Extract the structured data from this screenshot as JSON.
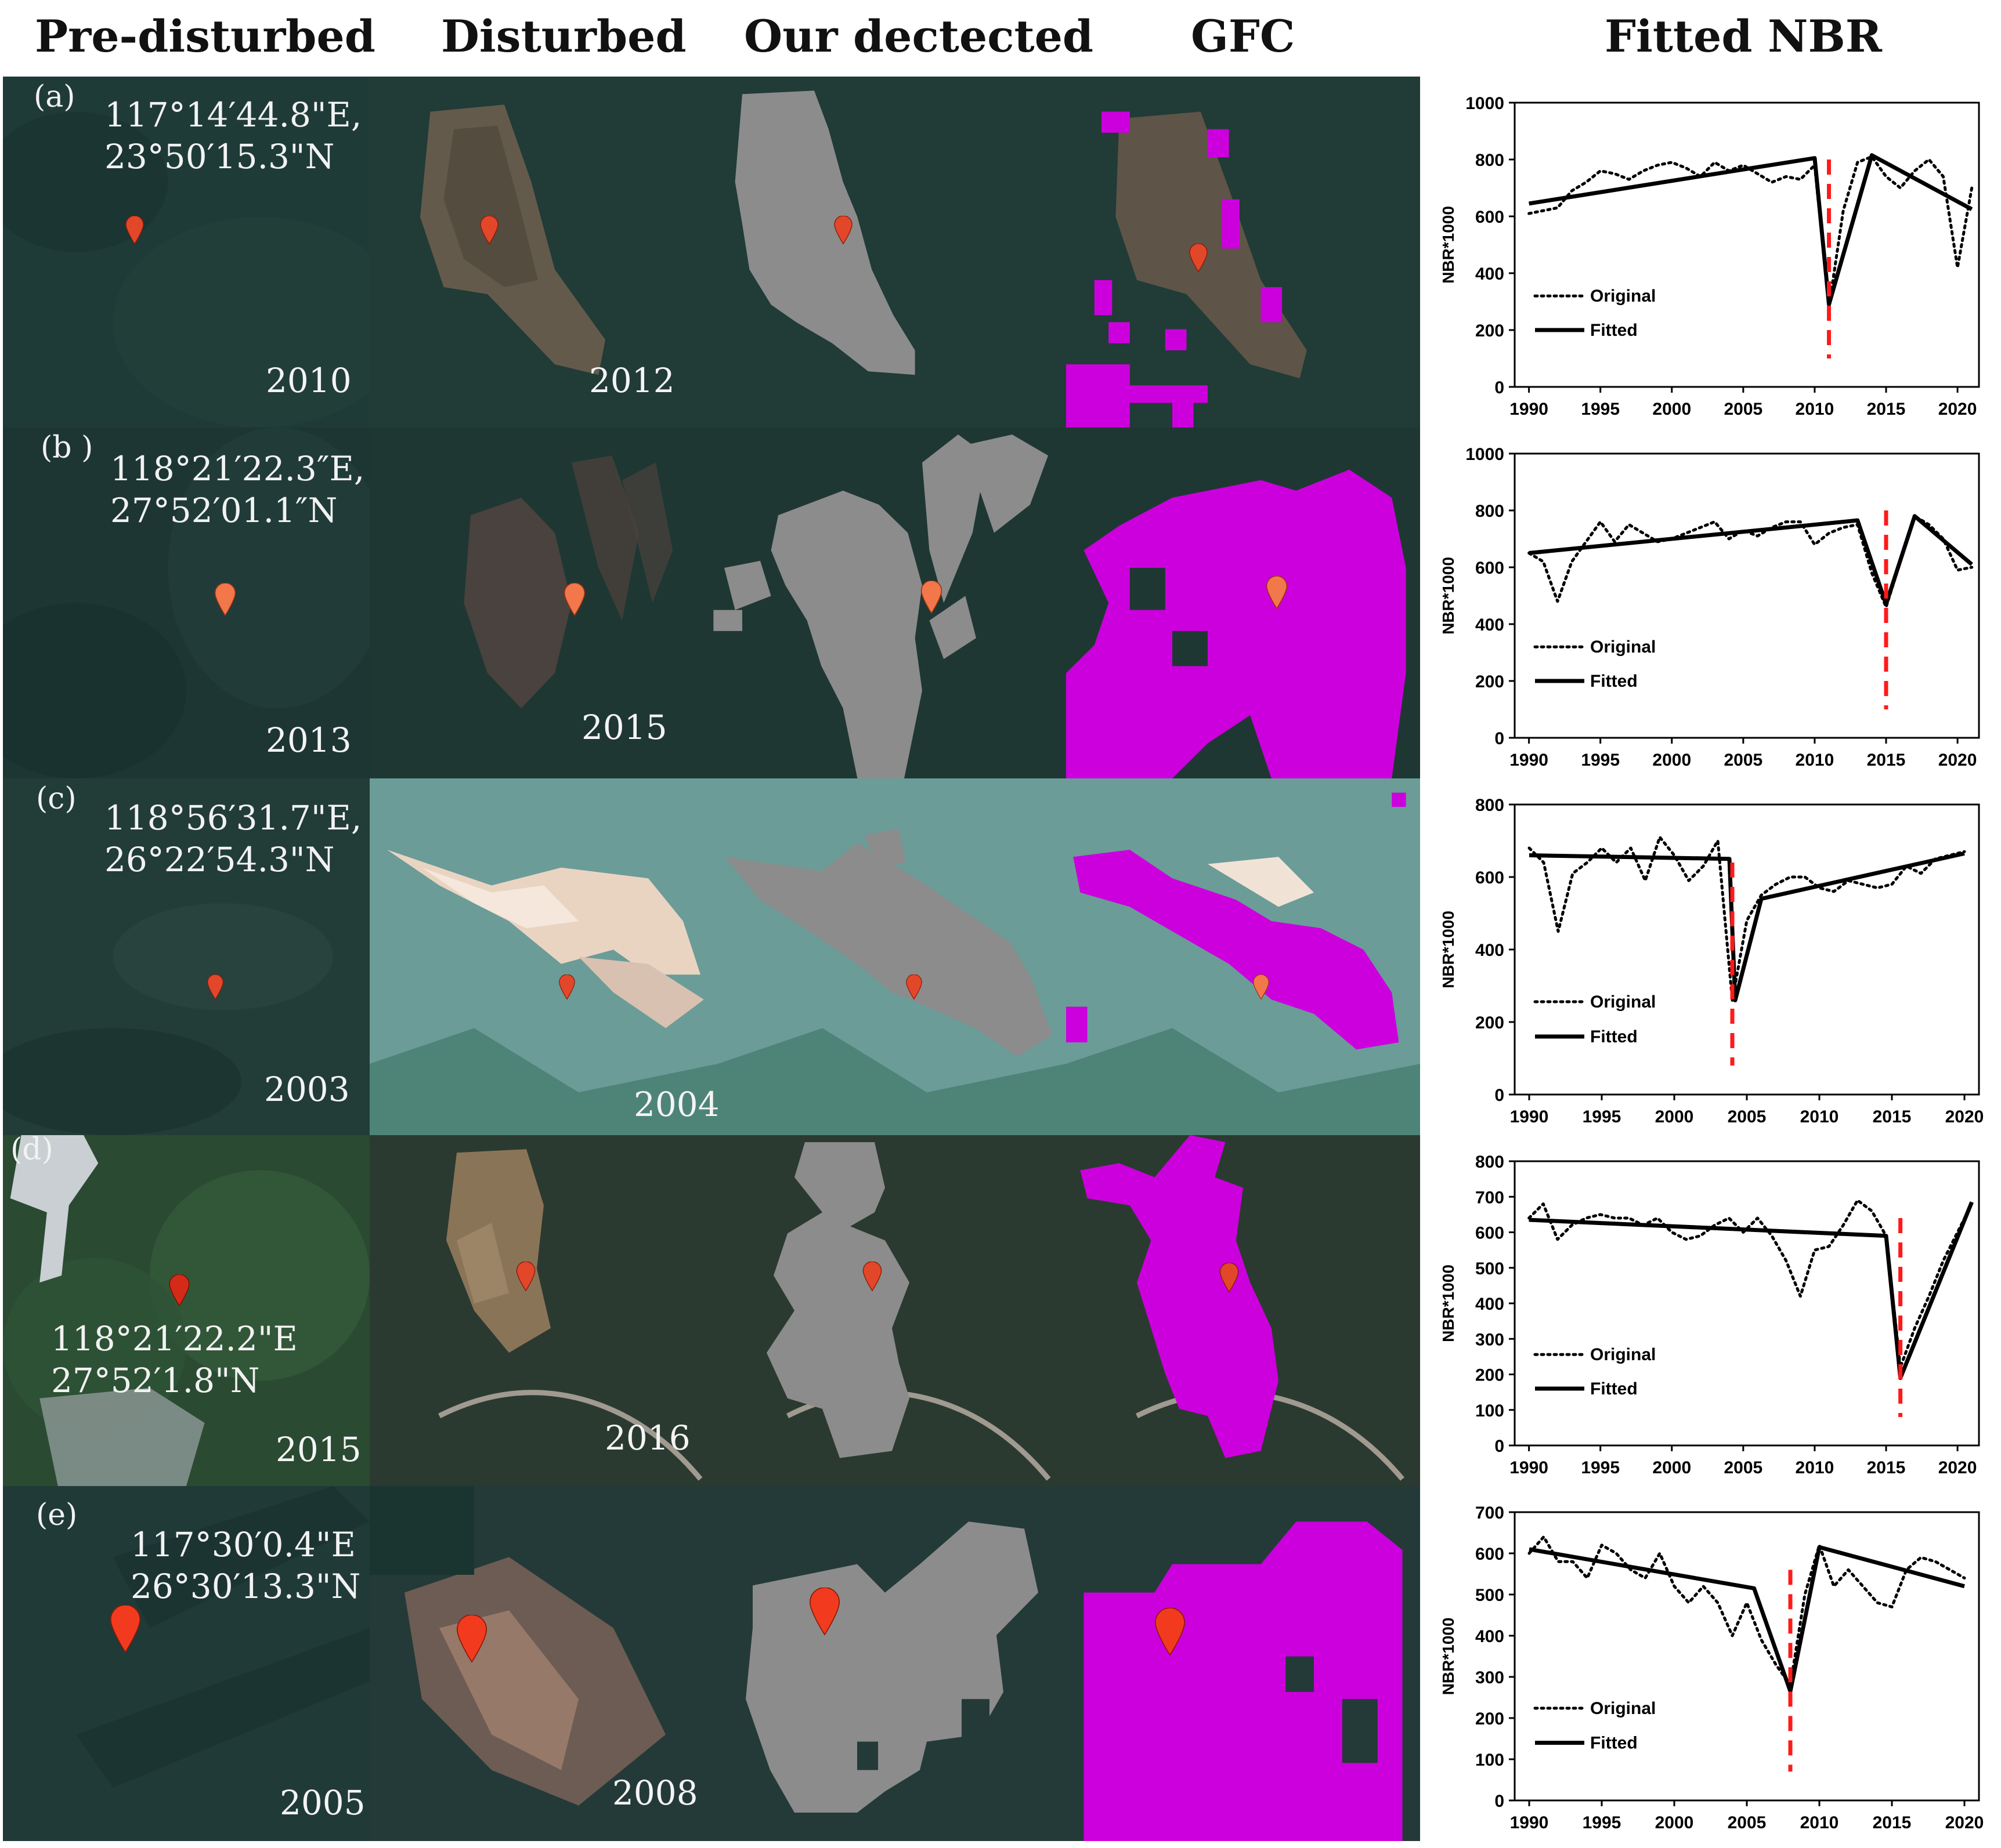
{
  "headers": {
    "pre": "Pre-disturbed",
    "dist": "Disturbed",
    "ours": "Our dectected",
    "gfc": "GFC",
    "nbr": "Fitted NBR"
  },
  "colors": {
    "forest": "#1f3b38",
    "detected": "#8c8c8c",
    "gfc": "#cc00dd",
    "marker": "#e2472a",
    "cutline": "#ff1a1a"
  },
  "rows": [
    {
      "label": "(a)",
      "coord1": "117°14′44.8\"E,",
      "coord2": "23°50′15.3\"N",
      "pre_year": "2010",
      "dist_year": "2012"
    },
    {
      "label": "(b )",
      "coord1": "118°21′22.3″E,",
      "coord2": "27°52′01.1″N",
      "pre_year": "2013",
      "dist_year": "2015"
    },
    {
      "label": "(c)",
      "coord1": "118°56′31.7\"E,",
      "coord2": "26°22′54.3\"N",
      "pre_year": "2003",
      "dist_year": "2004"
    },
    {
      "label": "(d)",
      "coord1": "118°21′22.2\"E",
      "coord2": "27°52′1.8\"N",
      "pre_year": "2015",
      "dist_year": "2016"
    },
    {
      "label": "(e)",
      "coord1": "117°30′0.4\"E",
      "coord2": "26°30′13.3\"N",
      "pre_year": "2005",
      "dist_year": "2008"
    }
  ],
  "chart_data": [
    {
      "type": "line",
      "panel": "a",
      "xlabel": "",
      "ylabel": "NBR*1000",
      "xlim": [
        1989,
        2021.5
      ],
      "ylim": [
        0,
        1000
      ],
      "xticks": [
        1990,
        1995,
        2000,
        2005,
        2010,
        2015,
        2020
      ],
      "yticks": [
        0,
        200,
        400,
        600,
        800,
        1000
      ],
      "legend": [
        "Original",
        "Fitted"
      ],
      "disturbance_year": 2011,
      "series": [
        {
          "name": "Original",
          "style": "dotted",
          "x": [
            1990,
            1991,
            1992,
            1993,
            1994,
            1995,
            1996,
            1997,
            1998,
            1999,
            2000,
            2001,
            2002,
            2003,
            2004,
            2005,
            2006,
            2007,
            2008,
            2009,
            2010,
            2011,
            2012,
            2013,
            2014,
            2015,
            2016,
            2017,
            2018,
            2019,
            2020,
            2021
          ],
          "y": [
            610,
            620,
            630,
            690,
            720,
            760,
            750,
            730,
            760,
            780,
            790,
            770,
            740,
            790,
            760,
            780,
            750,
            720,
            740,
            730,
            780,
            280,
            620,
            790,
            810,
            740,
            700,
            760,
            800,
            740,
            420,
            700
          ]
        },
        {
          "name": "Fitted",
          "style": "solid",
          "x": [
            1990,
            2010,
            2011,
            2014,
            2021
          ],
          "y": [
            645,
            805,
            290,
            815,
            625
          ]
        }
      ]
    },
    {
      "type": "line",
      "panel": "b",
      "xlabel": "",
      "ylabel": "NBR*1000",
      "xlim": [
        1989,
        2021.5
      ],
      "ylim": [
        0,
        1000
      ],
      "xticks": [
        1990,
        1995,
        2000,
        2005,
        2010,
        2015,
        2020
      ],
      "yticks": [
        0,
        200,
        400,
        600,
        800,
        1000
      ],
      "legend": [
        "Original",
        "Fitted"
      ],
      "disturbance_year": 2015,
      "series": [
        {
          "name": "Original",
          "style": "dotted",
          "x": [
            1990,
            1991,
            1992,
            1993,
            1994,
            1995,
            1996,
            1997,
            1998,
            1999,
            2000,
            2001,
            2002,
            2003,
            2004,
            2005,
            2006,
            2007,
            2008,
            2009,
            2010,
            2011,
            2012,
            2013,
            2014,
            2015,
            2016,
            2017,
            2018,
            2019,
            2020,
            2021
          ],
          "y": [
            650,
            620,
            480,
            620,
            690,
            760,
            690,
            750,
            720,
            690,
            700,
            720,
            740,
            760,
            700,
            730,
            710,
            740,
            760,
            760,
            680,
            720,
            740,
            750,
            580,
            460,
            620,
            780,
            750,
            700,
            590,
            600
          ]
        },
        {
          "name": "Fitted",
          "style": "solid",
          "x": [
            1990,
            2013,
            2015,
            2017,
            2021
          ],
          "y": [
            650,
            765,
            470,
            780,
            610
          ]
        }
      ]
    },
    {
      "type": "line",
      "panel": "c",
      "xlabel": "",
      "ylabel": "NBR*1000",
      "xlim": [
        1989,
        2021
      ],
      "ylim": [
        0,
        800
      ],
      "xticks": [
        1990,
        1995,
        2000,
        2005,
        2010,
        2015,
        2020
      ],
      "yticks": [
        0,
        200,
        400,
        600,
        800
      ],
      "legend": [
        "Original",
        "Fitted"
      ],
      "disturbance_year": 2004,
      "series": [
        {
          "name": "Original",
          "style": "dotted",
          "x": [
            1990,
            1991,
            1992,
            1993,
            1994,
            1995,
            1996,
            1997,
            1998,
            1999,
            2000,
            2001,
            2002,
            2003,
            2004,
            2005,
            2006,
            2007,
            2008,
            2009,
            2010,
            2011,
            2012,
            2013,
            2014,
            2015,
            2016,
            2017,
            2018,
            2019,
            2020
          ],
          "y": [
            680,
            640,
            450,
            610,
            640,
            680,
            640,
            680,
            590,
            710,
            660,
            590,
            630,
            700,
            260,
            480,
            550,
            580,
            600,
            600,
            570,
            560,
            590,
            580,
            570,
            580,
            630,
            610,
            650,
            660,
            670
          ]
        },
        {
          "name": "Fitted",
          "style": "solid",
          "x": [
            1990,
            2003.8,
            2004.2,
            2006,
            2020
          ],
          "y": [
            660,
            650,
            260,
            540,
            665
          ]
        }
      ]
    },
    {
      "type": "line",
      "panel": "d",
      "xlabel": "",
      "ylabel": "NBR*1000",
      "xlim": [
        1989,
        2021.5
      ],
      "ylim": [
        0,
        800
      ],
      "xticks": [
        1990,
        1995,
        2000,
        2005,
        2010,
        2015,
        2020
      ],
      "yticks": [
        0,
        100,
        200,
        300,
        400,
        500,
        600,
        700,
        800
      ],
      "legend": [
        "Original",
        "Fitted"
      ],
      "disturbance_year": 2016,
      "series": [
        {
          "name": "Original",
          "style": "dotted",
          "x": [
            1990,
            1991,
            1992,
            1993,
            1994,
            1995,
            1996,
            1997,
            1998,
            1999,
            2000,
            2001,
            2002,
            2003,
            2004,
            2005,
            2006,
            2007,
            2008,
            2009,
            2010,
            2011,
            2012,
            2013,
            2014,
            2015,
            2016,
            2017,
            2018,
            2019,
            2020,
            2021
          ],
          "y": [
            640,
            680,
            580,
            620,
            640,
            650,
            640,
            640,
            620,
            640,
            600,
            580,
            590,
            620,
            640,
            600,
            640,
            590,
            520,
            420,
            550,
            560,
            620,
            690,
            660,
            590,
            220,
            330,
            420,
            520,
            600,
            680
          ]
        },
        {
          "name": "Fitted",
          "style": "solid",
          "x": [
            1990,
            2015,
            2016,
            2021
          ],
          "y": [
            635,
            590,
            190,
            685
          ]
        }
      ]
    },
    {
      "type": "line",
      "panel": "e",
      "xlabel": "",
      "ylabel": "NBR*1000",
      "xlim": [
        1989,
        2021
      ],
      "ylim": [
        0,
        700
      ],
      "xticks": [
        1990,
        1995,
        2000,
        2005,
        2010,
        2015,
        2020
      ],
      "yticks": [
        0,
        100,
        200,
        300,
        400,
        500,
        600,
        700
      ],
      "legend": [
        "Original",
        "Fitted"
      ],
      "disturbance_year": 2008,
      "series": [
        {
          "name": "Original",
          "style": "dotted",
          "x": [
            1990,
            1991,
            1992,
            1993,
            1994,
            1995,
            1996,
            1997,
            1998,
            1999,
            2000,
            2001,
            2002,
            2003,
            2004,
            2005,
            2006,
            2007,
            2008,
            2009,
            2010,
            2011,
            2012,
            2013,
            2014,
            2015,
            2016,
            2017,
            2018,
            2019,
            2020
          ],
          "y": [
            600,
            640,
            580,
            580,
            540,
            620,
            600,
            560,
            540,
            600,
            520,
            480,
            520,
            480,
            400,
            480,
            390,
            330,
            280,
            500,
            620,
            520,
            560,
            520,
            480,
            470,
            560,
            590,
            580,
            560,
            540
          ]
        },
        {
          "name": "Fitted",
          "style": "solid",
          "x": [
            1990,
            2005.5,
            2008,
            2010,
            2020
          ],
          "y": [
            610,
            515,
            265,
            615,
            520
          ]
        }
      ]
    }
  ]
}
